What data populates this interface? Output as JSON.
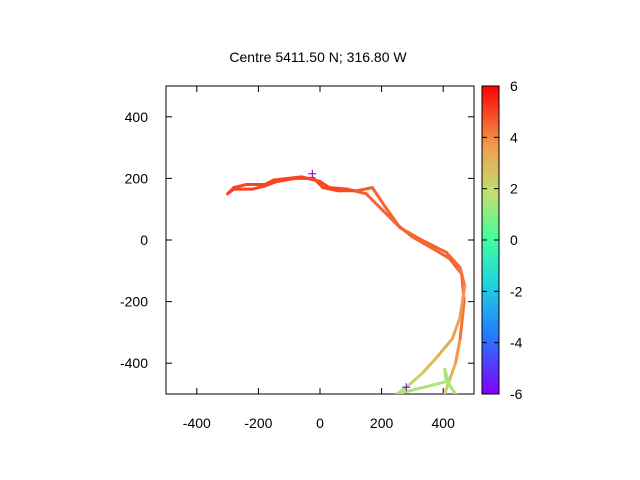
{
  "chart_data": {
    "type": "line",
    "title": "Centre 5411.50 N; 316.80  W",
    "xlabel": "",
    "ylabel": "",
    "xlim": [
      -500,
      500
    ],
    "ylim": [
      -500,
      500
    ],
    "x_ticks": [
      -400,
      -200,
      0,
      200,
      400
    ],
    "y_ticks": [
      -400,
      -200,
      0,
      200,
      400
    ],
    "grid": false,
    "colorbar": {
      "range": [
        -6,
        6
      ],
      "ticks": [
        -6,
        -4,
        -2,
        0,
        2,
        4,
        6
      ],
      "palette": "rainbow"
    },
    "track": [
      {
        "x": 405,
        "y": -500,
        "c": 2
      },
      {
        "x": 415,
        "y": -470,
        "c": 2.5
      },
      {
        "x": 440,
        "y": -400,
        "c": 3.5
      },
      {
        "x": 455,
        "y": -320,
        "c": 4
      },
      {
        "x": 468,
        "y": -200,
        "c": 4.5
      },
      {
        "x": 460,
        "y": -110,
        "c": 4.5
      },
      {
        "x": 420,
        "y": -60,
        "c": 4.5
      },
      {
        "x": 370,
        "y": -30,
        "c": 4.5
      },
      {
        "x": 300,
        "y": 10,
        "c": 4.5
      },
      {
        "x": 250,
        "y": 50,
        "c": 4.5
      },
      {
        "x": 200,
        "y": 100,
        "c": 4.5
      },
      {
        "x": 150,
        "y": 150,
        "c": 4.5
      },
      {
        "x": 90,
        "y": 165,
        "c": 4.8
      },
      {
        "x": 30,
        "y": 170,
        "c": 5
      },
      {
        "x": 0,
        "y": 190,
        "c": 5
      },
      {
        "x": -60,
        "y": 205,
        "c": 5
      },
      {
        "x": -150,
        "y": 195,
        "c": 5
      },
      {
        "x": -180,
        "y": 180,
        "c": 5
      },
      {
        "x": -240,
        "y": 180,
        "c": 5
      },
      {
        "x": -280,
        "y": 170,
        "c": 5
      },
      {
        "x": -300,
        "y": 150,
        "c": 5
      },
      {
        "x": -280,
        "y": 165,
        "c": 5
      },
      {
        "x": -220,
        "y": 165,
        "c": 5
      },
      {
        "x": -180,
        "y": 175,
        "c": 5
      },
      {
        "x": -140,
        "y": 190,
        "c": 5
      },
      {
        "x": -80,
        "y": 200,
        "c": 5
      },
      {
        "x": -20,
        "y": 200,
        "c": 5
      },
      {
        "x": 10,
        "y": 170,
        "c": 5
      },
      {
        "x": 60,
        "y": 160,
        "c": 5
      },
      {
        "x": 120,
        "y": 160,
        "c": 4.8
      },
      {
        "x": 170,
        "y": 170,
        "c": 4.5
      },
      {
        "x": 210,
        "y": 110,
        "c": 4.5
      },
      {
        "x": 260,
        "y": 40,
        "c": 4.5
      },
      {
        "x": 330,
        "y": 0,
        "c": 4.5
      },
      {
        "x": 410,
        "y": -40,
        "c": 4.5
      },
      {
        "x": 455,
        "y": -90,
        "c": 4.5
      },
      {
        "x": 470,
        "y": -150,
        "c": 4
      },
      {
        "x": 455,
        "y": -250,
        "c": 3.5
      },
      {
        "x": 430,
        "y": -320,
        "c": 3.5
      },
      {
        "x": 380,
        "y": -380,
        "c": 3
      },
      {
        "x": 335,
        "y": -430,
        "c": 2.5
      },
      {
        "x": 290,
        "y": -470,
        "c": 2
      },
      {
        "x": 250,
        "y": -500,
        "c": 1.5
      },
      {
        "x": 410,
        "y": -460,
        "c": 1.5
      },
      {
        "x": 405,
        "y": -420,
        "c": 1.5
      },
      {
        "x": 420,
        "y": -470,
        "c": 1.5
      },
      {
        "x": 440,
        "y": -500,
        "c": 1.5
      }
    ],
    "markers": [
      {
        "x": -25,
        "y": 215
      },
      {
        "x": 280,
        "y": -478
      }
    ]
  }
}
